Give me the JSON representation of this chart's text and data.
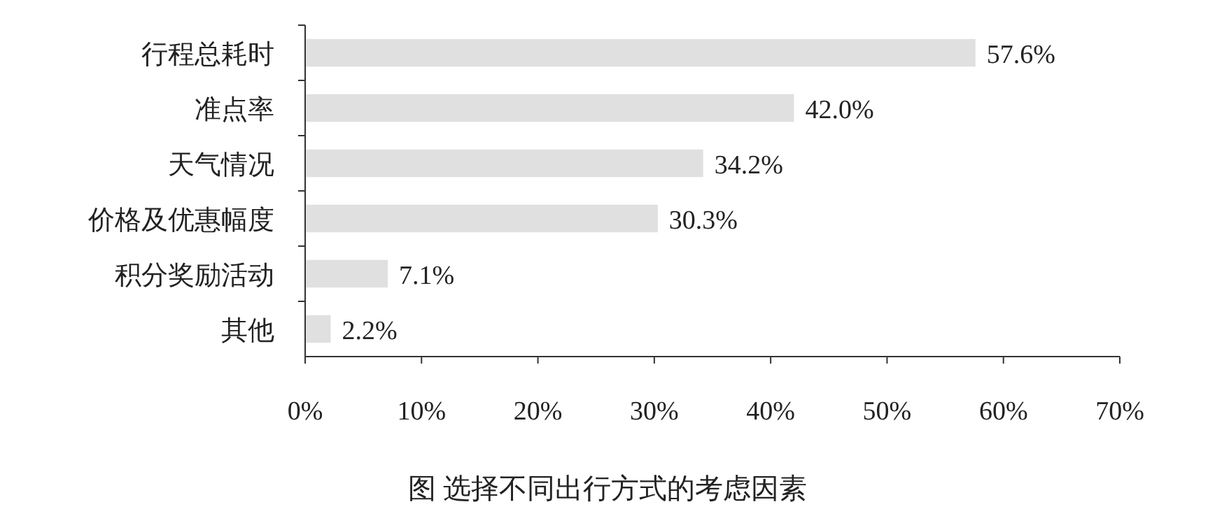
{
  "chart_data": {
    "type": "bar",
    "orientation": "horizontal",
    "title": "图 选择不同出行方式的考虑因素",
    "categories": [
      "行程总耗时",
      "准点率",
      "天气情况",
      "价格及优惠幅度",
      "积分奖励活动",
      "其他"
    ],
    "values": [
      57.6,
      42.0,
      34.2,
      30.3,
      7.1,
      2.2
    ],
    "value_labels": [
      "57.6%",
      "42.0%",
      "34.2%",
      "30.3%",
      "7.1%",
      "2.2%"
    ],
    "color": "#e0e0e0",
    "xlim": [
      0,
      70
    ],
    "xticks": [
      {
        "value": 0,
        "label": "0%"
      },
      {
        "value": 10,
        "label": "10%"
      },
      {
        "value": 20,
        "label": "20%"
      },
      {
        "value": 30,
        "label": "30%"
      },
      {
        "value": 40,
        "label": "40%"
      },
      {
        "value": 50,
        "label": "50%"
      },
      {
        "value": 60,
        "label": "60%"
      },
      {
        "value": 70,
        "label": "70%"
      }
    ],
    "grid": false
  }
}
